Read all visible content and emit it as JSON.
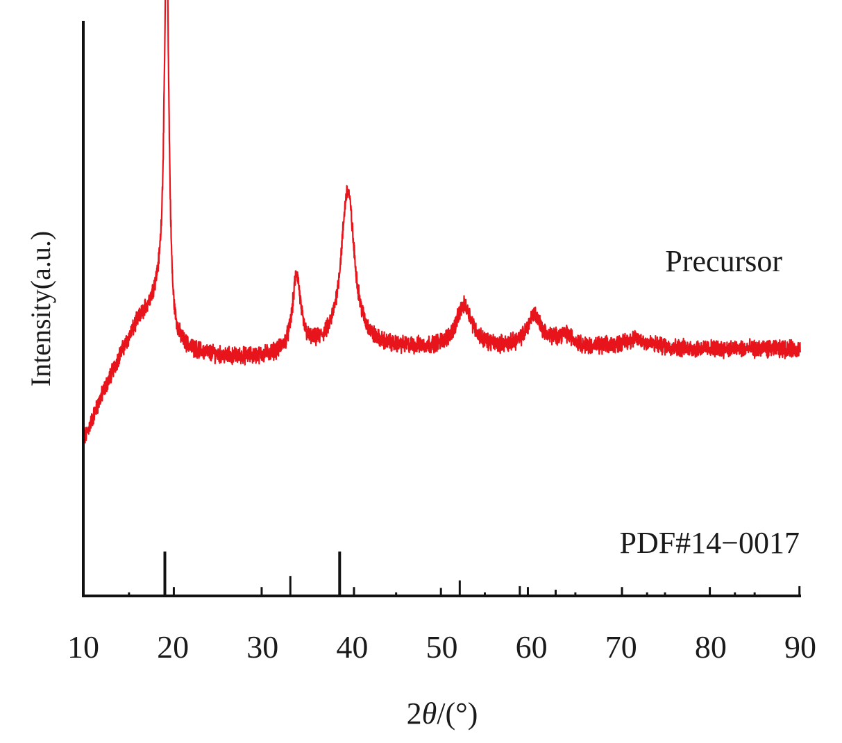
{
  "chart_data": {
    "type": "line",
    "title": "",
    "xlabel_prefix": "2",
    "xlabel_theta": "θ",
    "xlabel_suffix": "/(°)",
    "ylabel": "Intensity(a.u.)",
    "xlim": [
      10,
      90
    ],
    "x_ticks": [
      10,
      20,
      30,
      40,
      50,
      60,
      70,
      80,
      90
    ],
    "grid": false,
    "colors": {
      "sample": "#e8141c",
      "reference": "#111111",
      "axis": "#111111"
    },
    "series": [
      {
        "name": "Precursor",
        "label": "Precursor",
        "baseline": [
          [
            10,
            15
          ],
          [
            12,
            23
          ],
          [
            14,
            30
          ],
          [
            16,
            36
          ],
          [
            18,
            40
          ],
          [
            19,
            41
          ],
          [
            20,
            32
          ],
          [
            22,
            31
          ],
          [
            26,
            30
          ],
          [
            30,
            30
          ],
          [
            33,
            30.5
          ],
          [
            36,
            31
          ],
          [
            40,
            31.5
          ],
          [
            44,
            31.5
          ],
          [
            50,
            31.5
          ],
          [
            56,
            31.5
          ],
          [
            62,
            32
          ],
          [
            66,
            31.5
          ],
          [
            72,
            32
          ],
          [
            78,
            31.5
          ],
          [
            84,
            31.5
          ],
          [
            90,
            31.5
          ]
        ],
        "peaks": [
          {
            "pos": 19.3,
            "height": 67,
            "width": 0.3
          },
          {
            "pos": 33.8,
            "height": 13.5,
            "width": 0.55
          },
          {
            "pos": 39.5,
            "height": 28,
            "width": 0.9
          },
          {
            "pos": 52.5,
            "height": 7.5,
            "width": 1.1
          },
          {
            "pos": 60.3,
            "height": 5.5,
            "width": 0.9
          },
          {
            "pos": 63.8,
            "height": 2,
            "width": 1.2
          },
          {
            "pos": 71.5,
            "height": 1.2,
            "width": 1.5
          }
        ]
      },
      {
        "name": "PDF#14-0017",
        "label": "PDF#14−0017",
        "sticks": [
          [
            15.1,
            8
          ],
          [
            19.1,
            100
          ],
          [
            20.1,
            20
          ],
          [
            29.9,
            20
          ],
          [
            33.1,
            45
          ],
          [
            38.6,
            100
          ],
          [
            40.2,
            20
          ],
          [
            44.9,
            8
          ],
          [
            49.9,
            18
          ],
          [
            52.0,
            35
          ],
          [
            54.8,
            8
          ],
          [
            58.7,
            22
          ],
          [
            59.6,
            20
          ],
          [
            62.7,
            14
          ],
          [
            64.9,
            8
          ],
          [
            70.1,
            20
          ],
          [
            72.9,
            8
          ],
          [
            74.9,
            8
          ],
          [
            79.9,
            20
          ],
          [
            82.7,
            8
          ],
          [
            84.9,
            8
          ],
          [
            89.9,
            22
          ]
        ]
      }
    ]
  }
}
